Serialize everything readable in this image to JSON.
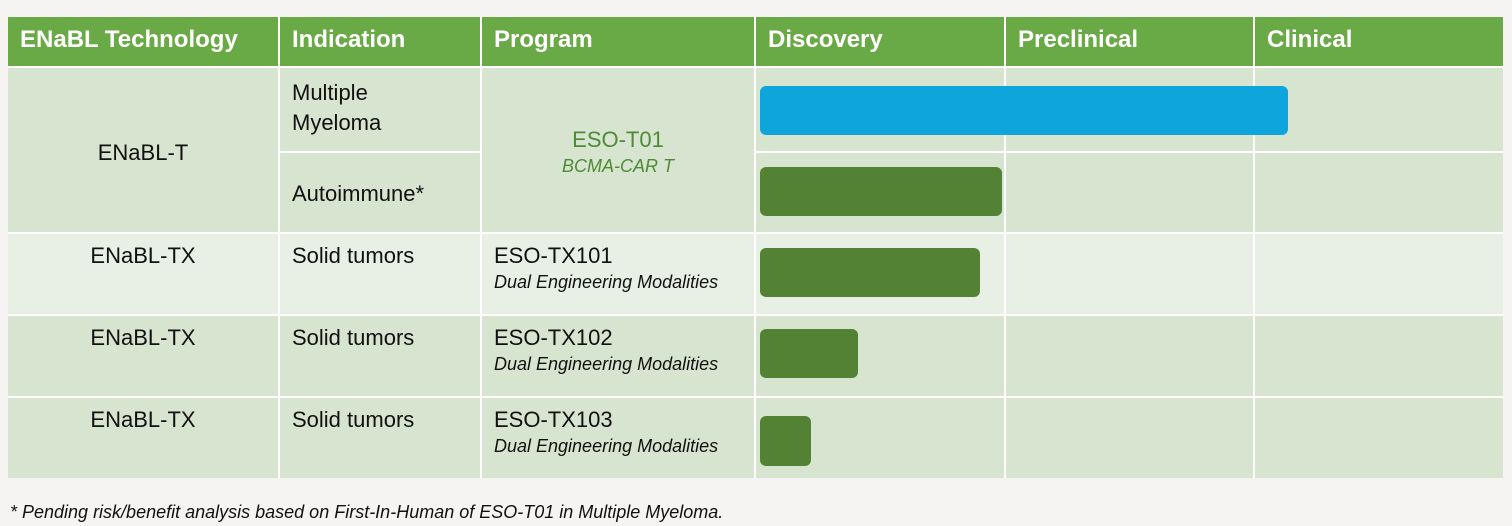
{
  "header": [
    "ENaBL Technology",
    "Indication",
    "Program",
    "Discovery",
    "Preclinical",
    "Clinical"
  ],
  "rows": [
    {
      "technology": "ENaBL-T",
      "indications": [
        "Multiple Myeloma",
        "Autoimmune*"
      ],
      "program": "ESO-T01",
      "program_detail": "BCMA-CAR T"
    },
    {
      "technology": "ENaBL-TX",
      "indication": "Solid tumors",
      "program": "ESO-TX101",
      "program_detail": "Dual Engineering Modalities"
    },
    {
      "technology": "ENaBL-TX",
      "indication": "Solid tumors",
      "program": "ESO-TX102",
      "program_detail": "Dual Engineering Modalities"
    },
    {
      "technology": "ENaBL-TX",
      "indication": "Solid tumors",
      "program": "ESO-TX103",
      "program_detail": "Dual Engineering Modalities"
    }
  ],
  "footnote": "* Pending risk/benefit analysis based on First-In-Human of ESO-T01 in Multiple Myeloma."
}
